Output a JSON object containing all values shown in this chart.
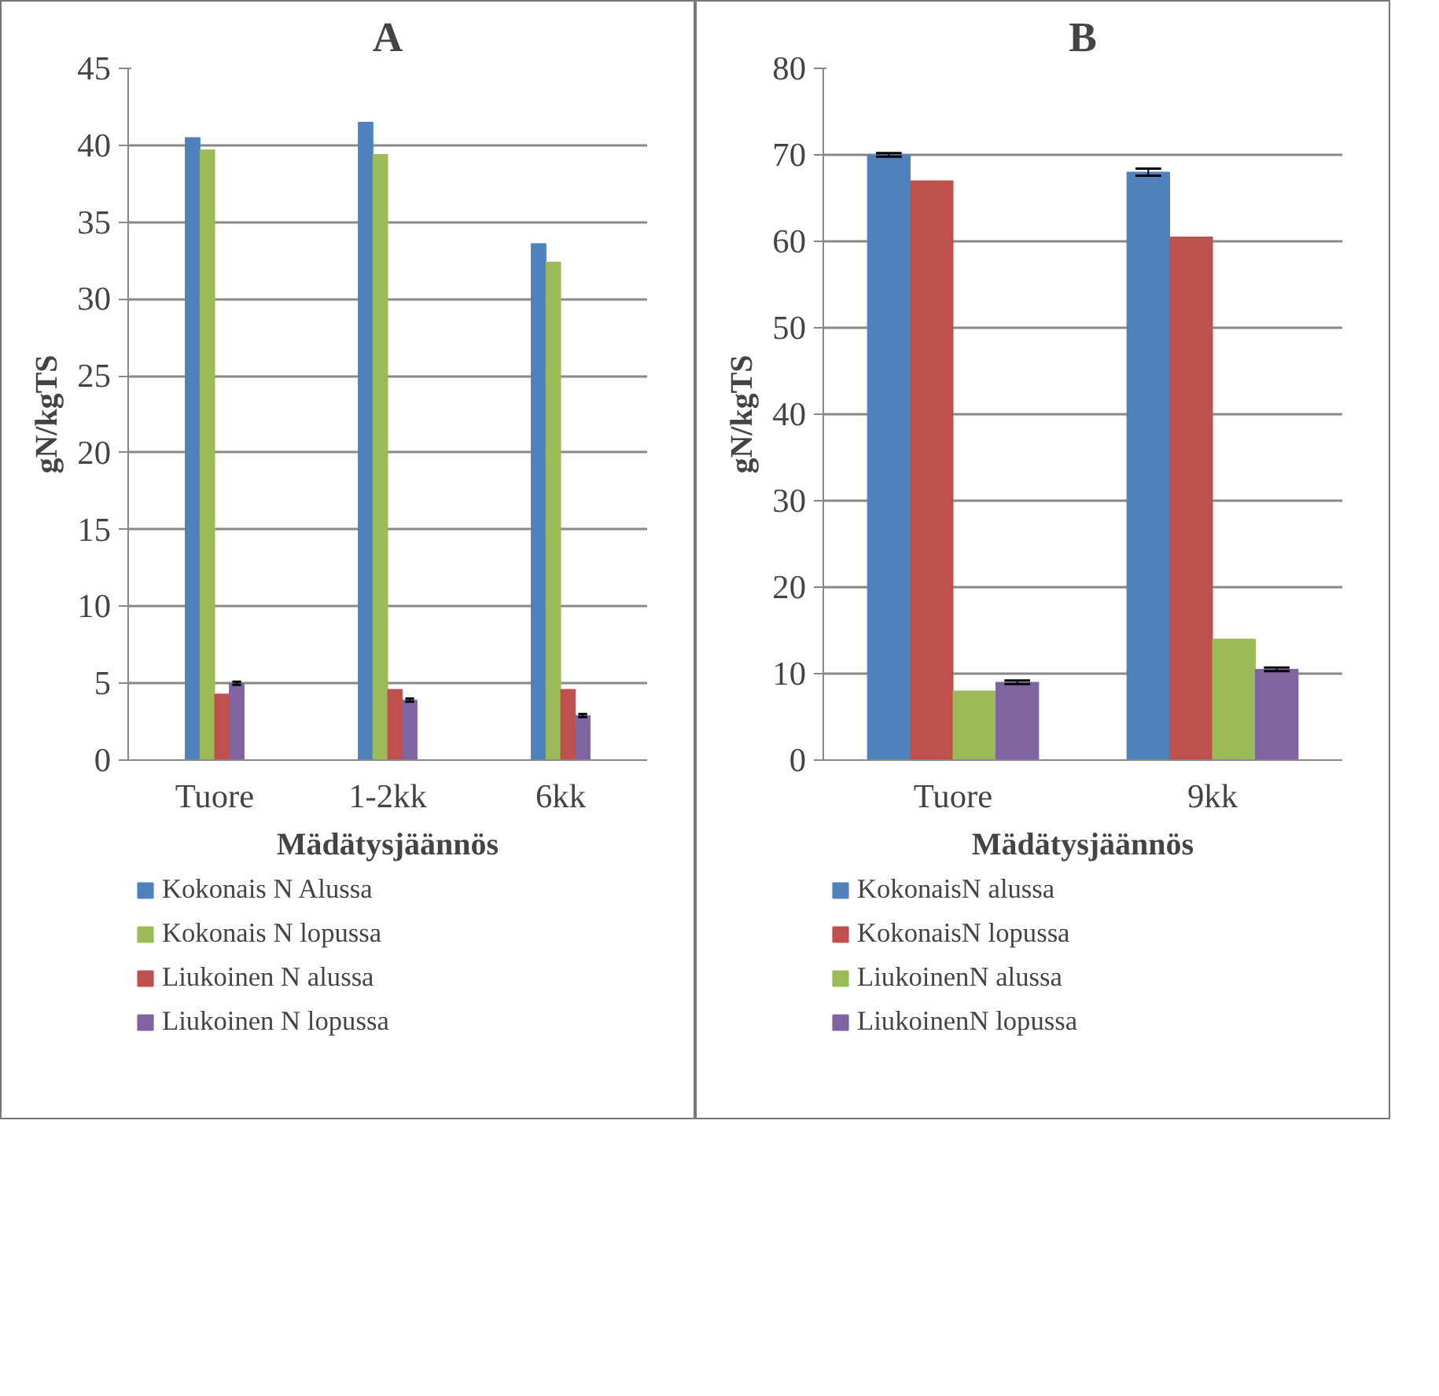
{
  "chart_data": [
    {
      "type": "bar",
      "title": "A",
      "xlabel": "Mädätysjäännös",
      "ylabel": "gN/kgTS",
      "categories": [
        "Tuore",
        "1-2kk",
        "6kk"
      ],
      "ylim": [
        0,
        45
      ],
      "yticks": [
        0,
        5,
        10,
        15,
        20,
        25,
        30,
        35,
        40,
        45
      ],
      "grid": "y",
      "legend": "bottom",
      "series": [
        {
          "name": "Kokonais N Alussa",
          "color": "#4f81bd",
          "values": [
            40.5,
            41.5,
            33.6
          ]
        },
        {
          "name": "Kokonais N lopussa",
          "color": "#9bbb59",
          "values": [
            39.7,
            39.4,
            32.4
          ]
        },
        {
          "name": "Liukoinen N alussa",
          "color": "#c0504d",
          "values": [
            4.3,
            4.6,
            4.6
          ]
        },
        {
          "name": "Liukoinen N lopussa",
          "color": "#8064a2",
          "values": [
            5.0,
            3.9,
            2.9
          ],
          "errors": [
            0.1,
            0.1,
            0.1
          ]
        }
      ]
    },
    {
      "type": "bar",
      "title": "B",
      "xlabel": "Mädätysjäännös",
      "ylabel": "gN/kgTS",
      "categories": [
        "Tuore",
        "9kk"
      ],
      "ylim": [
        0,
        80
      ],
      "yticks": [
        0,
        10,
        20,
        30,
        40,
        50,
        60,
        70,
        80
      ],
      "grid": "y",
      "legend": "bottom",
      "series": [
        {
          "name": "KokonaisN alussa",
          "color": "#4f81bd",
          "values": [
            70,
            68
          ],
          "errors": [
            0.2,
            0.4
          ]
        },
        {
          "name": "KokonaisN lopussa",
          "color": "#c0504d",
          "values": [
            67,
            60.5
          ]
        },
        {
          "name": "LiukoinenN alussa",
          "color": "#9bbb59",
          "values": [
            8,
            14
          ]
        },
        {
          "name": "LiukoinenN lopussa",
          "color": "#8064a2",
          "values": [
            9,
            10.5
          ],
          "errors": [
            0.2,
            0.2
          ]
        }
      ]
    }
  ]
}
